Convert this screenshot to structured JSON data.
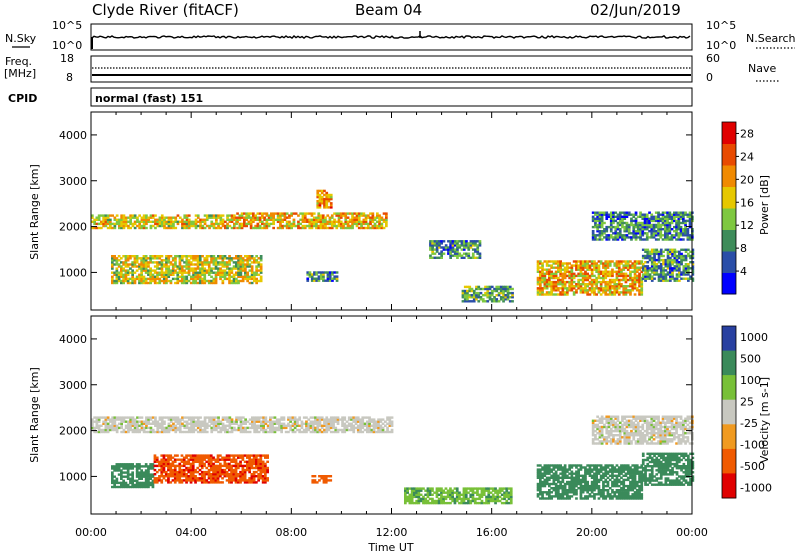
{
  "header": {
    "station": "Clyde River (fitACF)",
    "beam": "Beam 04",
    "date": "02/Jun/2019"
  },
  "noise_panel": {
    "left_label": "N.Sky",
    "right_label": "N.Search",
    "left_ticks": [
      "10^5",
      "10^0"
    ],
    "right_ticks": [
      "10^5",
      "10^0"
    ]
  },
  "freq_panel": {
    "left_label": "Freq.",
    "left_unit": "[MHz]",
    "right_label": "Nave",
    "left_ticks": [
      "18",
      "8"
    ],
    "right_ticks": [
      "60",
      "0"
    ]
  },
  "cpid": {
    "label": "CPID",
    "value": "normal (fast) 151"
  },
  "colors": {
    "power": [
      "#0000ff",
      "#2a4ea8",
      "#3e8c5a",
      "#7ec840",
      "#e6c800",
      "#f08a00",
      "#e84a00",
      "#e00000"
    ],
    "velocity": [
      "#e00000",
      "#f05a00",
      "#f09a20",
      "#c8c8c0",
      "#78c038",
      "#3a8a5a",
      "#2840a0"
    ],
    "ground_scatter": "#c0c0b8"
  },
  "chart_data": [
    {
      "type": "heatmap",
      "name": "power",
      "xlabel": "",
      "ylabel": "Slant Range [km]",
      "xlim": [
        0,
        24
      ],
      "ylim": [
        180,
        4500
      ],
      "x_ticks": [
        "00:00",
        "04:00",
        "08:00",
        "12:00",
        "16:00",
        "20:00",
        "00:00"
      ],
      "y_ticks": [
        1000,
        2000,
        3000,
        4000
      ],
      "colorbar": {
        "label": "Power [dB]",
        "ticks": [
          4,
          8,
          12,
          16,
          20,
          24,
          28
        ],
        "range": [
          0,
          30
        ]
      },
      "echo_regions": [
        {
          "t0": 0.0,
          "t1": 5.8,
          "r0": 1950,
          "r1": 2250,
          "value": 18
        },
        {
          "t0": 5.8,
          "t1": 11.8,
          "r0": 1950,
          "r1": 2300,
          "value": 20
        },
        {
          "t0": 0.8,
          "t1": 6.8,
          "r0": 750,
          "r1": 1350,
          "value": 17
        },
        {
          "t0": 8.6,
          "t1": 9.8,
          "r0": 800,
          "r1": 1000,
          "value": 10
        },
        {
          "t0": 9.0,
          "t1": 9.6,
          "r0": 2400,
          "r1": 2800,
          "value": 22
        },
        {
          "t0": 13.5,
          "t1": 15.5,
          "r0": 1300,
          "r1": 1700,
          "value": 10
        },
        {
          "t0": 14.8,
          "t1": 16.8,
          "r0": 350,
          "r1": 700,
          "value": 12
        },
        {
          "t0": 17.8,
          "t1": 22.0,
          "r0": 500,
          "r1": 1250,
          "value": 20
        },
        {
          "t0": 20.0,
          "t1": 24.0,
          "r0": 1700,
          "r1": 2300,
          "value": 9
        },
        {
          "t0": 22.0,
          "t1": 24.0,
          "r0": 800,
          "r1": 1500,
          "value": 10
        }
      ]
    },
    {
      "type": "heatmap",
      "name": "velocity",
      "xlabel": "Time UT",
      "ylabel": "Slant Range [km]",
      "xlim": [
        0,
        24
      ],
      "ylim": [
        180,
        4500
      ],
      "x_ticks": [
        "00:00",
        "04:00",
        "08:00",
        "12:00",
        "16:00",
        "20:00",
        "00:00"
      ],
      "y_ticks": [
        1000,
        2000,
        3000,
        4000
      ],
      "colorbar": {
        "label": "Velocity [m s-1]",
        "ticks": [
          1000,
          500,
          100,
          25,
          -25,
          -100,
          -500,
          -1000
        ]
      },
      "echo_regions": [
        {
          "t0": 0.0,
          "t1": 12.0,
          "r0": 1950,
          "r1": 2300,
          "value": 0
        },
        {
          "t0": 0.8,
          "t1": 2.5,
          "r0": 750,
          "r1": 1250,
          "value": 300
        },
        {
          "t0": 2.5,
          "t1": 7.0,
          "r0": 850,
          "r1": 1450,
          "value": -400
        },
        {
          "t0": 8.8,
          "t1": 9.6,
          "r0": 850,
          "r1": 1000,
          "value": -300
        },
        {
          "t0": 12.5,
          "t1": 16.8,
          "r0": 400,
          "r1": 750,
          "value": 80
        },
        {
          "t0": 17.8,
          "t1": 22.0,
          "r0": 500,
          "r1": 1250,
          "value": 200
        },
        {
          "t0": 20.0,
          "t1": 24.0,
          "r0": 1700,
          "r1": 2300,
          "value": 0
        },
        {
          "t0": 22.0,
          "t1": 24.0,
          "r0": 800,
          "r1": 1500,
          "value": 300
        }
      ]
    }
  ]
}
